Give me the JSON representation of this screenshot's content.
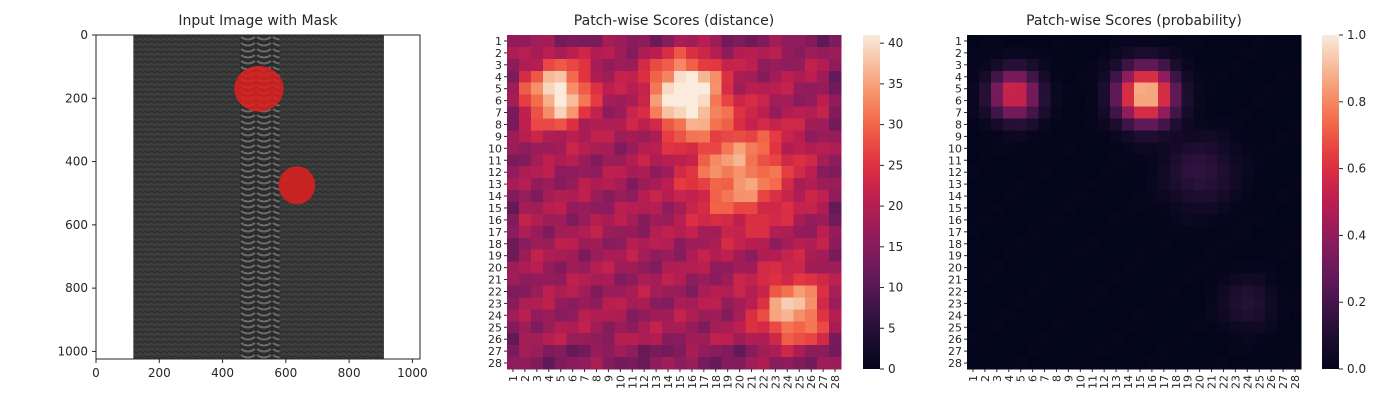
{
  "chart_data": [
    {
      "type": "image",
      "title": "Input Image with Mask",
      "xlim": [
        0,
        1024
      ],
      "ylim": [
        1024,
        0
      ],
      "xticks": [
        0,
        200,
        400,
        600,
        800,
        1000
      ],
      "yticks": [
        0,
        200,
        400,
        600,
        800,
        1000
      ],
      "colors": {
        "fabric": "#3a3a3a",
        "zipper": "#4e4e4e",
        "mask": "#e02020"
      },
      "mask_regions": [
        {
          "cx": 515,
          "cy": 170,
          "rx": 78,
          "ry": 72
        },
        {
          "cx": 635,
          "cy": 475,
          "rx": 58,
          "ry": 60
        }
      ]
    },
    {
      "type": "heatmap",
      "title": "Patch-wise Scores (distance)",
      "rows": 28,
      "cols": 28,
      "colorbar": {
        "min": 0,
        "max": 41,
        "ticks": [
          0,
          5,
          10,
          15,
          20,
          25,
          30,
          35,
          40
        ]
      },
      "base_level": 18,
      "hot_spots": [
        {
          "row": 4.5,
          "col": 14.5,
          "peak": 40,
          "sigma": 2.0
        },
        {
          "row": 4.5,
          "col": 3.8,
          "peak": 33,
          "sigma": 1.8
        },
        {
          "row": 22.5,
          "col": 23.5,
          "peak": 28,
          "sigma": 2.0
        },
        {
          "row": 11,
          "col": 19,
          "peak": 25,
          "sigma": 3.0
        }
      ]
    },
    {
      "type": "heatmap",
      "title": "Patch-wise Scores (probability)",
      "rows": 28,
      "cols": 28,
      "colorbar": {
        "min": 0,
        "max": 1.0,
        "ticks": [
          "0.0",
          "0.2",
          "0.4",
          "0.6",
          "0.8",
          "1.0"
        ]
      },
      "base_level": 0.0,
      "hot_spots": [
        {
          "row": 4.5,
          "col": 14.5,
          "peak": 0.95,
          "sigma": 1.6
        },
        {
          "row": 4.5,
          "col": 3.5,
          "peak": 0.6,
          "sigma": 1.4
        },
        {
          "row": 11,
          "col": 19,
          "peak": 0.15,
          "sigma": 2.0
        },
        {
          "row": 22,
          "col": 23,
          "peak": 0.12,
          "sigma": 1.5
        }
      ]
    }
  ]
}
